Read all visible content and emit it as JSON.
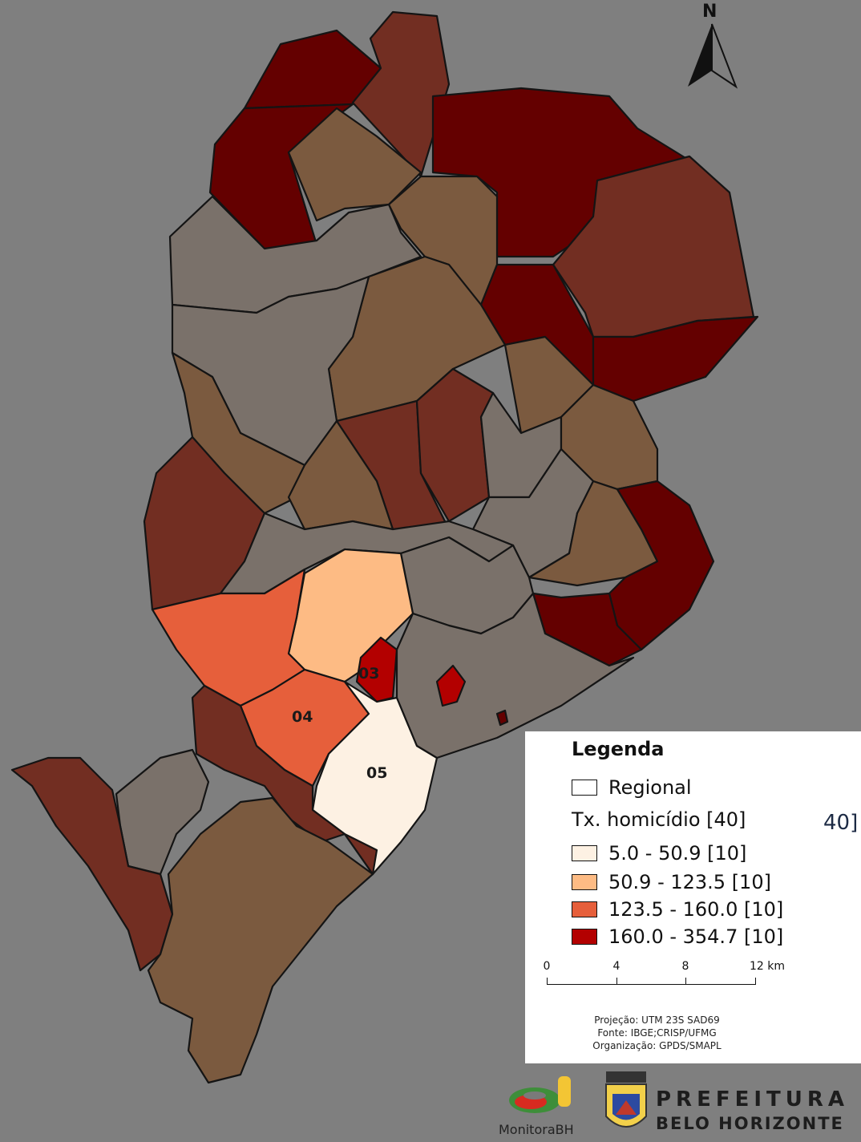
{
  "north_label": "N",
  "region_labels": {
    "r03": "03",
    "r04": "04",
    "r05": "05"
  },
  "legend": {
    "title": "Legenda",
    "regional_label": "Regional",
    "field_label": "Tx. homicídio [40]",
    "classes": [
      {
        "label": "5.0 - 50.9  [10]",
        "color": "#fdf1e3"
      },
      {
        "label": "50.9 - 123.5  [10]",
        "color": "#fdbb84"
      },
      {
        "label": "123.5 - 160.0  [10]",
        "color": "#e65f3b"
      },
      {
        "label": "160.0 - 354.7  [10]",
        "color": "#b30000"
      }
    ],
    "scale": {
      "ticks": [
        "0",
        "4",
        "8",
        "12 km"
      ]
    },
    "credits": {
      "projection": "Projeção: UTM 23S SAD69",
      "source": "Fonte: IBGE;CRISP/UFMG",
      "organization": "Organização: GPDS/SMAPL"
    },
    "cut_fragment": "40]"
  },
  "faded_colors": {
    "grey": "#7a716a",
    "light_brown": "#7b5a3f",
    "medium_brown": "#722e22",
    "dark_red": "#640000"
  },
  "logos": {
    "monitora_text": "MonitoraBH",
    "pbh_line1": "PREFEITURA",
    "pbh_line2": "BELO HORIZONTE"
  }
}
